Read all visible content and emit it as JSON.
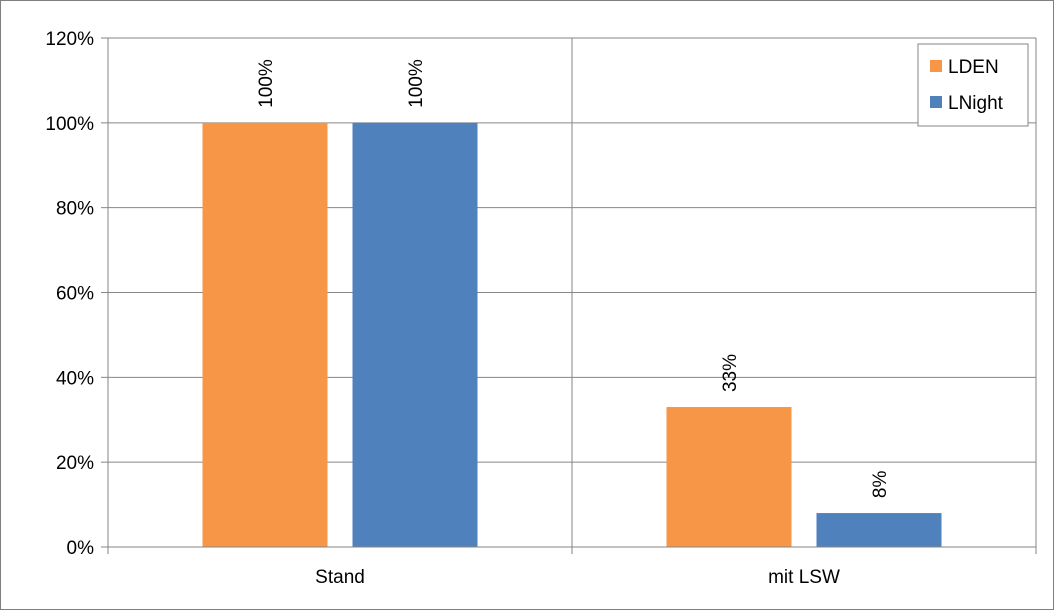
{
  "chart_data": {
    "type": "bar",
    "title": "",
    "xlabel": "",
    "ylabel": "",
    "categories": [
      "Stand",
      "mit LSW"
    ],
    "series": [
      {
        "name": "LDEN",
        "values": [
          100,
          33
        ],
        "color": "#f79646",
        "labels": [
          "100%",
          "33%"
        ]
      },
      {
        "name": "LNight",
        "values": [
          100,
          8
        ],
        "color": "#4f81bd",
        "labels": [
          "100%",
          "8%"
        ]
      }
    ],
    "ylim": [
      0,
      120
    ],
    "yticks": [
      0,
      20,
      40,
      60,
      80,
      100,
      120
    ],
    "ytick_labels": [
      "0%",
      "20%",
      "40%",
      "60%",
      "80%",
      "100%",
      "120%"
    ],
    "grid": true,
    "legend_position": "top-right"
  }
}
